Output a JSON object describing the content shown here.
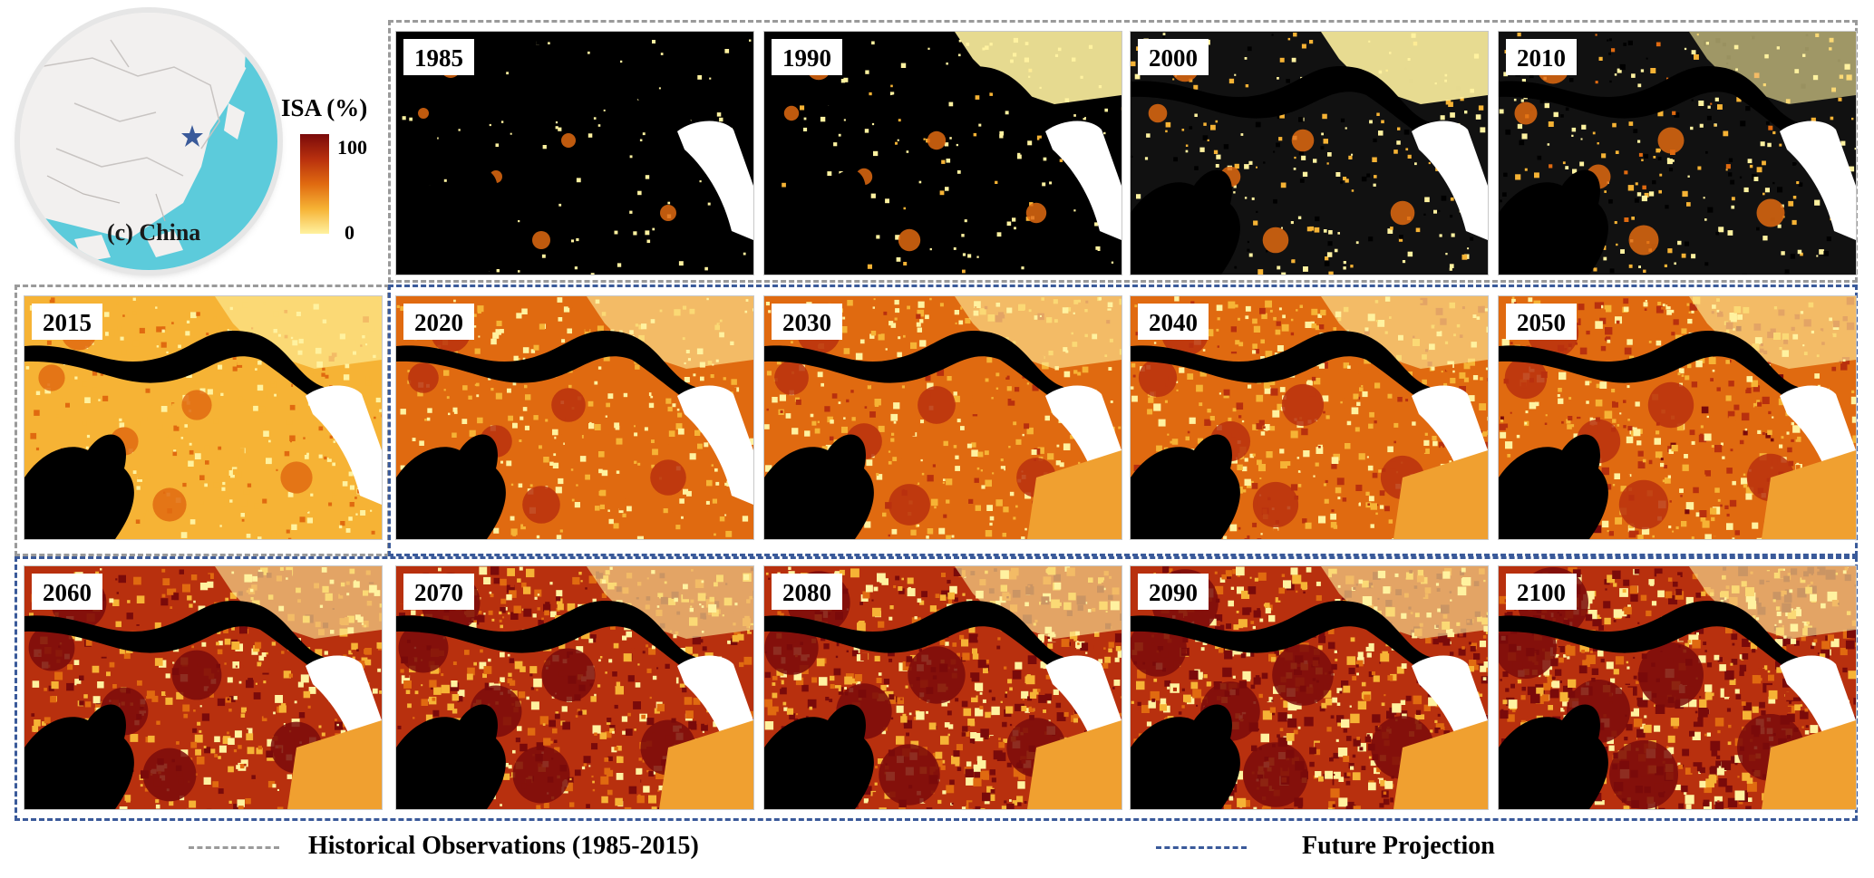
{
  "inset": {
    "label": "(c) China",
    "marker": "star-icon",
    "land_color": "#f2f0ef",
    "sea_color": "#5ccbdb",
    "marker_color": "#3a5a9a"
  },
  "colorbar": {
    "title": "ISA (%)",
    "max_label": "100",
    "min_label": "0",
    "colors": [
      "#7a0a0a",
      "#b8300e",
      "#e06a10",
      "#f6b335",
      "#fff2a0"
    ]
  },
  "panels": [
    {
      "year": "1985"
    },
    {
      "year": "1990"
    },
    {
      "year": "2000"
    },
    {
      "year": "2010"
    },
    {
      "year": "2015"
    },
    {
      "year": "2020"
    },
    {
      "year": "2030"
    },
    {
      "year": "2040"
    },
    {
      "year": "2050"
    },
    {
      "year": "2060"
    },
    {
      "year": "2070"
    },
    {
      "year": "2080"
    },
    {
      "year": "2090"
    },
    {
      "year": "2100"
    }
  ],
  "legend": {
    "historical": "Historical Observations (1985-2015)",
    "future": "Future Projection",
    "historical_color": "#9a9a9a",
    "future_color": "#3a5a9a"
  }
}
